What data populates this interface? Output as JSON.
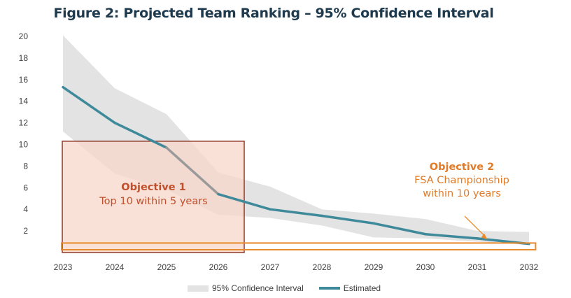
{
  "chart_data": {
    "type": "line",
    "title": "Figure 2: Projected Team Ranking – 95% Confidence Interval",
    "xlabel": "",
    "ylabel": "",
    "x": [
      2023,
      2024,
      2025,
      2026,
      2027,
      2028,
      2029,
      2030,
      2031,
      2032
    ],
    "x_ticks": [
      "2023",
      "2024",
      "2025",
      "2026",
      "2027",
      "2028",
      "2029",
      "2030",
      "2031",
      "2032"
    ],
    "y_ticks": [
      "2",
      "4",
      "6",
      "8",
      "10",
      "12",
      "14",
      "16",
      "18",
      "20"
    ],
    "ylim": [
      0,
      20
    ],
    "series": [
      {
        "name": "Estimated",
        "values": [
          15.3,
          12.0,
          9.7,
          5.4,
          4.0,
          3.4,
          2.7,
          1.7,
          1.3,
          0.8
        ],
        "color": "#3f8a9a"
      }
    ],
    "confidence_interval": {
      "name": "95% Confidence Interval",
      "lower": [
        11.2,
        7.3,
        5.8,
        3.5,
        3.2,
        2.5,
        1.4,
        1.3,
        1.0,
        0.7
      ],
      "upper": [
        20.1,
        15.2,
        12.8,
        7.4,
        6.1,
        4.0,
        3.6,
        3.1,
        2.0,
        1.9
      ],
      "color": "#e3e3e3"
    },
    "legend": [
      "95% Confidence Interval",
      "Estimated"
    ],
    "legend_position": "bottom",
    "grid": false,
    "annotations": {
      "objective1": {
        "title": "Objective 1",
        "text": "Top 10 within 5 years",
        "x_range": [
          2023,
          2026.5
        ],
        "y_range": [
          0,
          10.3
        ],
        "fill": "#f8d7cb",
        "stroke": "#8e3a2b",
        "text_color": "#c0502c"
      },
      "objective2": {
        "title": "Objective 2",
        "lines": [
          "FSA Championship",
          "within 10 years"
        ],
        "x_range": [
          2023,
          2032.1
        ],
        "y_range": [
          0,
          0.75
        ],
        "stroke": "#e88b2c",
        "text_color": "#e07b2a",
        "arrow_to": [
          2031.2,
          1.2
        ]
      }
    },
    "gray_segment_x": [
      2025,
      2026
    ]
  }
}
